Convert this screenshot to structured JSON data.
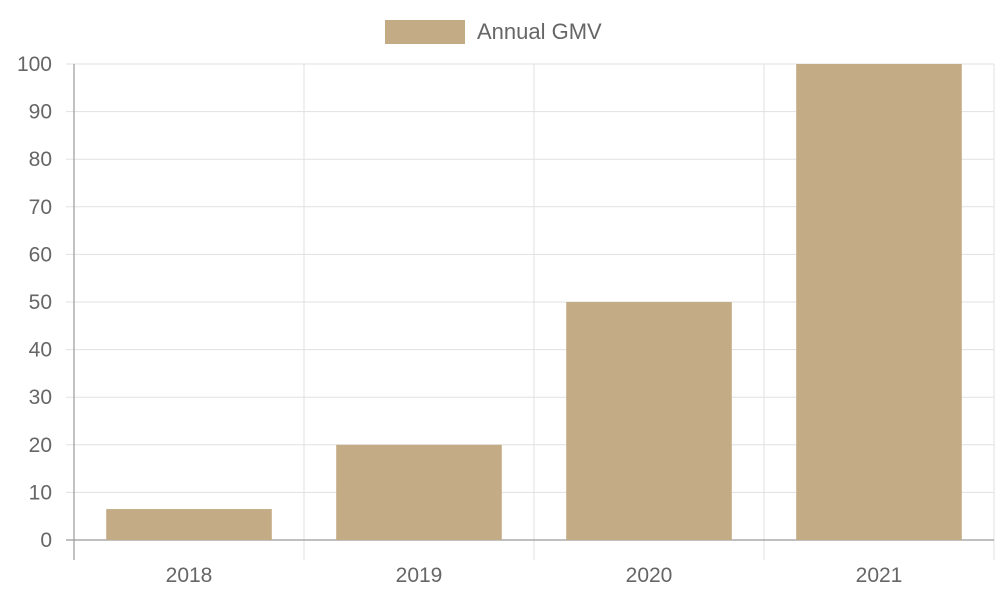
{
  "chart_data": {
    "type": "bar",
    "categories": [
      "2018",
      "2019",
      "2020",
      "2021"
    ],
    "series": [
      {
        "name": "Annual GMV",
        "values": [
          6.5,
          20,
          50,
          100
        ],
        "color": "#C2AB85"
      }
    ],
    "ylim": [
      0,
      100
    ],
    "y_ticks": [
      0,
      10,
      20,
      30,
      40,
      50,
      60,
      70,
      80,
      90,
      100
    ],
    "grid": true,
    "legend_position": "top"
  }
}
